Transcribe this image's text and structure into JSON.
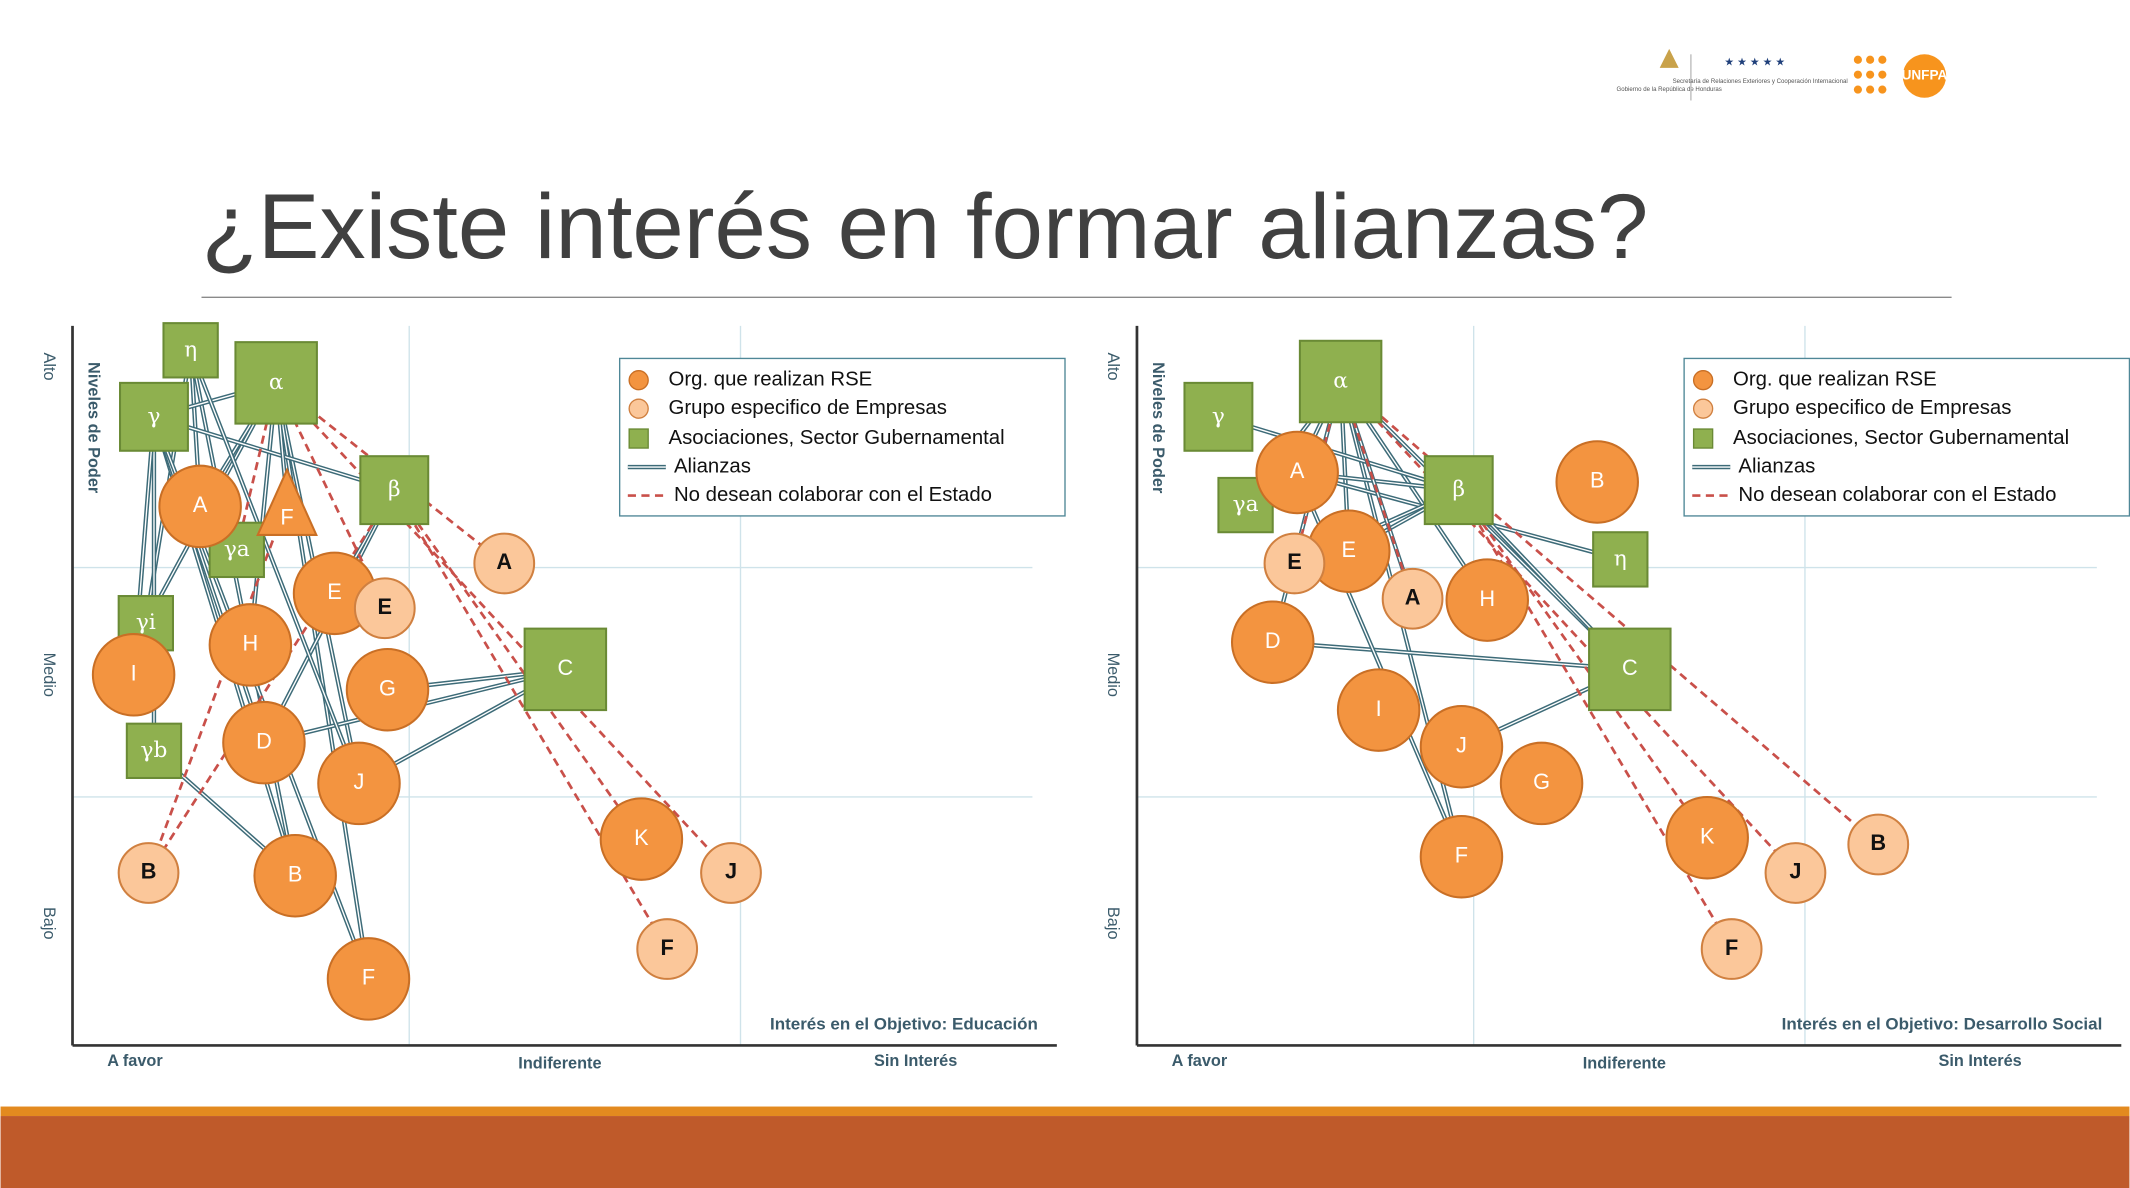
{
  "header": {
    "title": "¿Existe interés en formar alianzas?",
    "logos": [
      "Gobierno de la República de Honduras",
      "Secretaría de Relaciones Exteriores y Cooperación Internacional",
      "UNFPA"
    ]
  },
  "panels": [
    {
      "y_axis_title": "Niveles de Poder",
      "y_levels": [
        "Alto",
        "Medio",
        "Bajo"
      ],
      "x_levels": [
        "A favor",
        "Indiferente",
        "Sin Interés"
      ],
      "objective": "Interés en el Objetivo: Educación",
      "legend": [
        "Org. que realizan RSE",
        "Grupo especifico de Empresas",
        "Asociaciones, Sector Gubernamental",
        "Alianzas",
        "No desean colaborar con el Estado"
      ],
      "nodes": [
        "η",
        "α",
        "γ",
        "β",
        "γa",
        "γi",
        "γb",
        "C",
        "A",
        "E",
        "H",
        "I",
        "G",
        "D",
        "J",
        "B",
        "F",
        "K",
        "E",
        "A",
        "B",
        "J",
        "F",
        "F"
      ]
    },
    {
      "y_axis_title": "Niveles de Poder",
      "y_levels": [
        "Alto",
        "Medio",
        "Bajo"
      ],
      "x_levels": [
        "A favor",
        "Indiferente",
        "Sin Interés"
      ],
      "objective": "Interés en el Objetivo: Desarrollo Social",
      "legend": [
        "Org. que realizan RSE",
        "Grupo especifico de Empresas",
        "Asociaciones, Sector Gubernamental",
        "Alianzas",
        "No desean colaborar con el Estado"
      ],
      "nodes": [
        "α",
        "γ",
        "γa",
        "β",
        "η",
        "C",
        "A",
        "B",
        "E",
        "H",
        "D",
        "I",
        "J",
        "G",
        "F",
        "K",
        "E",
        "A",
        "B",
        "J",
        "F"
      ]
    }
  ]
}
